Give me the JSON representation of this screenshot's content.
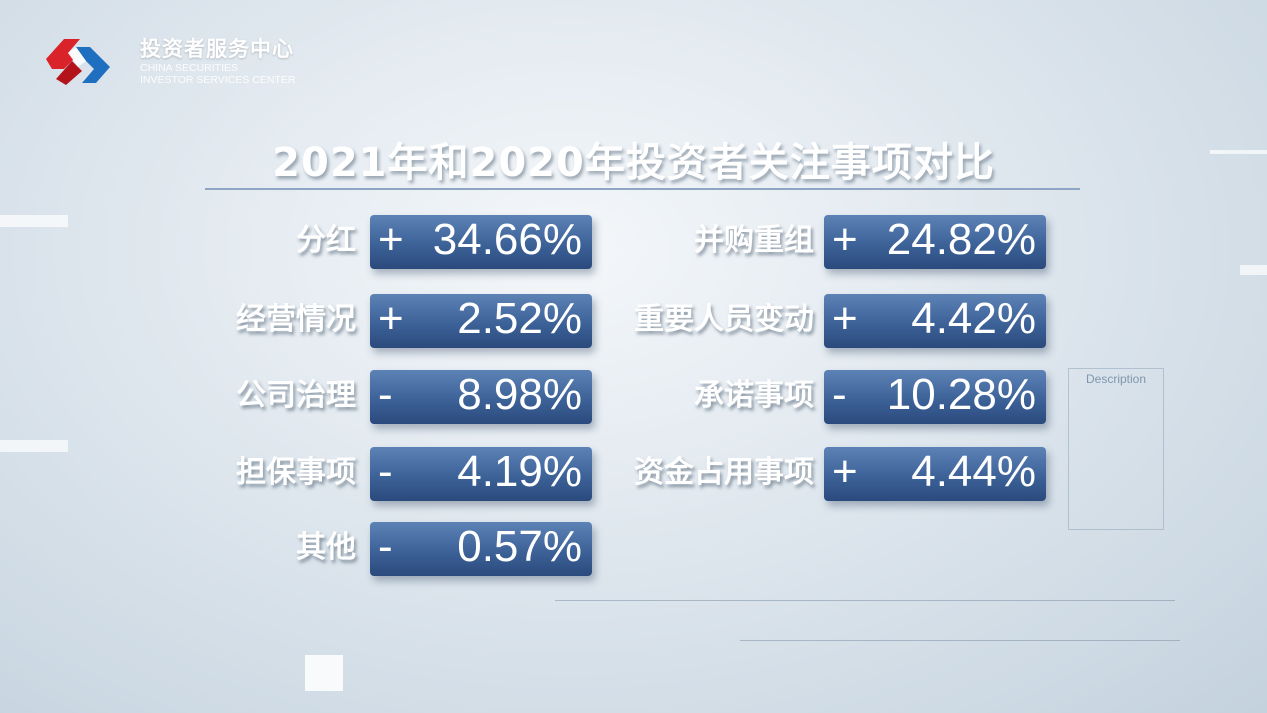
{
  "brand": {
    "name_cn": "投资者服务中心",
    "name_en_line1": "CHINA SECURITIES",
    "name_en_line2": "INVESTOR SERVICES CENTER"
  },
  "title": "2021年和2020年投资者关注事项对比",
  "items_left": [
    {
      "label": "分红",
      "sign": "+",
      "value": "34.66%"
    },
    {
      "label": "经营情况",
      "sign": "+",
      "value": "2.52%"
    },
    {
      "label": "公司治理",
      "sign": "-",
      "value": "8.98%"
    },
    {
      "label": "担保事项",
      "sign": "-",
      "value": "4.19%"
    },
    {
      "label": "其他",
      "sign": "-",
      "value": "0.57%"
    }
  ],
  "items_right": [
    {
      "label": "并购重组",
      "sign": "+",
      "value": "24.82%"
    },
    {
      "label": "重要人员变动",
      "sign": "+",
      "value": "4.42%"
    },
    {
      "label": "承诺事项",
      "sign": "-",
      "value": "10.28%"
    },
    {
      "label": "资金占用事项",
      "sign": "+",
      "value": "4.44%"
    }
  ],
  "background": {
    "description_label": "Description"
  },
  "colors": {
    "box_top": "#5d82b6",
    "box_bottom": "#2b4a7c",
    "logo_red": "#d9222a",
    "logo_blue": "#1f6fc0"
  }
}
